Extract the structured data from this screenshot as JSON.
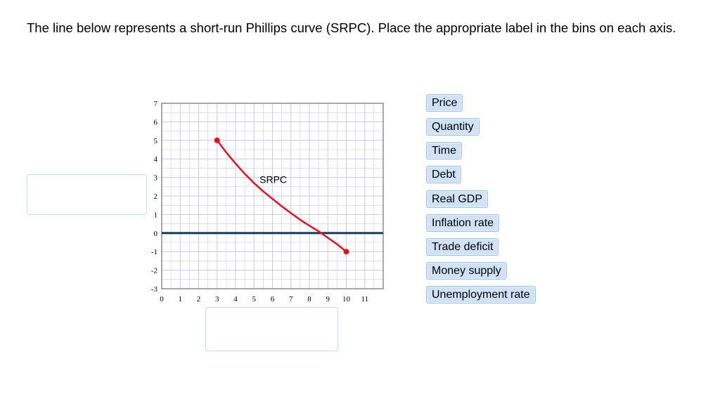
{
  "question": {
    "text": "The line below represents a short-run Phillips curve (SRPC). Place the appropriate label in the bins on each axis."
  },
  "drop_bins": {
    "y_axis": "",
    "x_axis": ""
  },
  "label_options": [
    "Price",
    "Quantity",
    "Time",
    "Debt",
    "Real GDP",
    "Inflation rate",
    "Trade deficit",
    "Money supply",
    "Unemployment rate"
  ],
  "colors": {
    "curve": "#e8101a",
    "zero_line": "#143d66",
    "grid": "#c8c8f0",
    "chip_bg": "#cfe2f6",
    "chip_border": "#9cc2e8"
  },
  "chart_data": {
    "type": "line",
    "xlim": [
      0,
      12
    ],
    "ylim": [
      -3,
      7
    ],
    "x_ticks": [
      0,
      1,
      2,
      3,
      4,
      5,
      6,
      7,
      8,
      9,
      10,
      11
    ],
    "y_ticks": [
      7,
      6,
      5,
      4,
      3,
      2,
      1,
      0,
      -1,
      -2,
      -3
    ],
    "grid": true,
    "horizontal_line_y": 0,
    "series": [
      {
        "name": "SRPC",
        "label_position": {
          "x": 5.3,
          "y": 2.7
        },
        "x": [
          3,
          3.5,
          4,
          4.5,
          5,
          5.5,
          6,
          6.5,
          7,
          7.5,
          8,
          8.5,
          9,
          9.5,
          10
        ],
        "y": [
          5,
          4.35,
          3.75,
          3.2,
          2.7,
          2.25,
          1.85,
          1.45,
          1.08,
          0.72,
          0.4,
          0.1,
          -0.25,
          -0.6,
          -1
        ],
        "endpoints": [
          {
            "x": 3,
            "y": 5
          },
          {
            "x": 10,
            "y": -1
          }
        ]
      }
    ]
  }
}
